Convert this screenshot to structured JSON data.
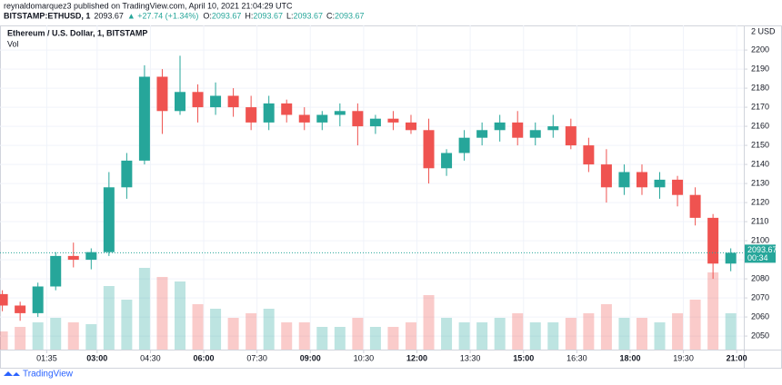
{
  "header": {
    "author_line": "reynaldomarquez3 published on TradingView.com, April 10, 2021 21:04:29 UTC",
    "symbol": "BITSTAMP:ETHUSD, 1",
    "last": "2093.67",
    "change": "▲ +27.74 (+1.34%)",
    "ohlc": [
      {
        "label": "O:",
        "value": "2093.67"
      },
      {
        "label": "H:",
        "value": "2093.67"
      },
      {
        "label": "L:",
        "value": "2093.67"
      },
      {
        "label": "C:",
        "value": "2093.67"
      }
    ]
  },
  "chart_data": {
    "type": "candlestick",
    "title": "Ethereum / U.S. Dollar, 1, BITSTAMP",
    "volume_label": "Vol",
    "currency_label": "2 USD",
    "x": [
      20,
      50,
      80,
      110,
      140,
      170,
      200,
      230,
      260,
      290,
      320,
      350,
      380,
      410,
      440,
      470,
      500,
      530,
      560,
      590,
      620,
      650,
      680,
      710,
      740,
      770,
      800,
      830,
      860,
      890,
      920,
      950,
      980,
      1010,
      1040,
      1070,
      1100,
      1130,
      1160,
      1190,
      1220,
      1250
    ],
    "open": [
      2072,
      2066,
      2062,
      2076,
      2092,
      2090,
      2094,
      2128,
      2142,
      2186,
      2168,
      2178,
      2170,
      2176,
      2170,
      2162,
      2172,
      2166,
      2162,
      2166,
      2168,
      2160,
      2164,
      2162,
      2158,
      2138,
      2146,
      2154,
      2158,
      2162,
      2154,
      2158,
      2160,
      2150,
      2140,
      2128,
      2136,
      2128,
      2132,
      2124,
      2112,
      2088
    ],
    "high": [
      2074,
      2068,
      2078,
      2094,
      2099,
      2096,
      2136,
      2146,
      2192,
      2190,
      2197,
      2182,
      2183,
      2180,
      2176,
      2176,
      2174,
      2170,
      2168,
      2172,
      2172,
      2166,
      2168,
      2166,
      2164,
      2148,
      2158,
      2162,
      2166,
      2168,
      2162,
      2166,
      2164,
      2154,
      2148,
      2140,
      2140,
      2136,
      2134,
      2128,
      2114,
      2096
    ],
    "low": [
      2063,
      2058,
      2060,
      2074,
      2086,
      2085,
      2092,
      2122,
      2140,
      2156,
      2166,
      2162,
      2166,
      2165,
      2158,
      2158,
      2162,
      2158,
      2158,
      2160,
      2150,
      2156,
      2158,
      2156,
      2130,
      2134,
      2142,
      2150,
      2152,
      2150,
      2150,
      2154,
      2148,
      2136,
      2120,
      2124,
      2124,
      2122,
      2118,
      2108,
      2080,
      2084
    ],
    "close": [
      2066,
      2062,
      2076,
      2092,
      2090,
      2094,
      2128,
      2142,
      2186,
      2168,
      2178,
      2170,
      2176,
      2170,
      2162,
      2172,
      2166,
      2162,
      2166,
      2168,
      2160,
      2164,
      2162,
      2158,
      2138,
      2146,
      2154,
      2158,
      2162,
      2154,
      2158,
      2160,
      2150,
      2140,
      2128,
      2136,
      2128,
      2132,
      2124,
      2112,
      2088,
      2093.67
    ],
    "volume": [
      20,
      25,
      30,
      35,
      30,
      28,
      70,
      55,
      90,
      80,
      75,
      50,
      45,
      35,
      40,
      45,
      30,
      30,
      25,
      25,
      35,
      25,
      25,
      30,
      60,
      35,
      30,
      30,
      35,
      40,
      30,
      30,
      35,
      40,
      50,
      35,
      35,
      30,
      40,
      55,
      85,
      40
    ],
    "up_color": "#26a69a",
    "down_color": "#ef5350",
    "last_price": 2093.67,
    "countdown": "00:34",
    "xlim": [
      16,
      1272
    ],
    "xticks": [
      {
        "value": 95,
        "label": "01:35"
      },
      {
        "value": 180,
        "label": "03:00"
      },
      {
        "value": 270,
        "label": "04:30"
      },
      {
        "value": 360,
        "label": "06:00"
      },
      {
        "value": 450,
        "label": "07:30"
      },
      {
        "value": 540,
        "label": "09:00"
      },
      {
        "value": 630,
        "label": "10:30"
      },
      {
        "value": 720,
        "label": "12:00"
      },
      {
        "value": 810,
        "label": "13:30"
      },
      {
        "value": 900,
        "label": "15:00"
      },
      {
        "value": 990,
        "label": "16:30"
      },
      {
        "value": 1080,
        "label": "18:00"
      },
      {
        "value": 1170,
        "label": "19:30"
      },
      {
        "value": 1260,
        "label": "21:00"
      }
    ],
    "ylim": [
      2042.9,
      2212.9
    ],
    "yticks": [
      2050,
      2060,
      2070,
      2080,
      2090,
      2100,
      2110,
      2120,
      2130,
      2140,
      2150,
      2160,
      2170,
      2180,
      2190,
      2200
    ],
    "grid": true
  },
  "footer": {
    "brand": "TradingView"
  }
}
